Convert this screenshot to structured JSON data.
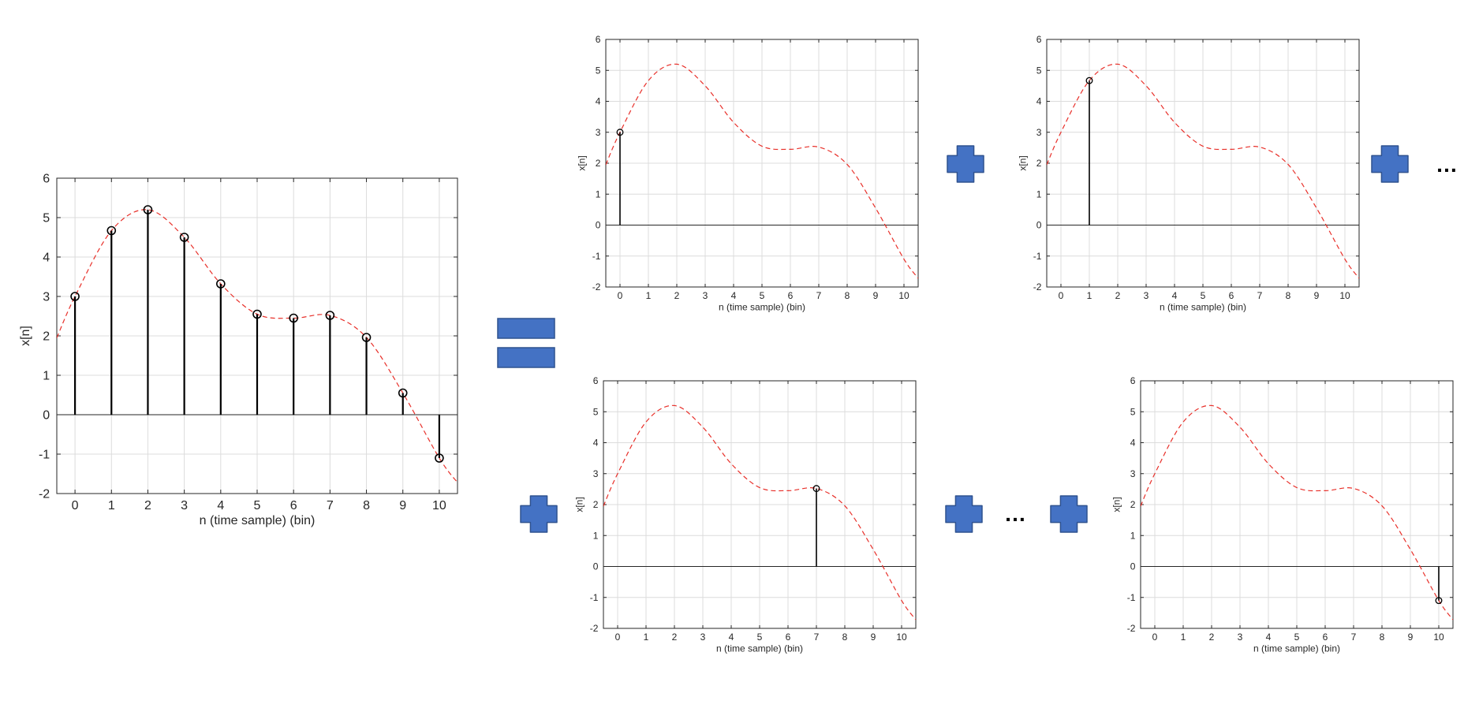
{
  "colors": {
    "stem": "#000000",
    "curve": "#e8302a",
    "grid": "#dcdcdc",
    "axis": "#262626",
    "operator_fill": "#4472c4",
    "operator_stroke": "#2f528f"
  },
  "operators": {
    "equals": "=",
    "plus": "+",
    "ellipsis": "…"
  },
  "chart_data": [
    {
      "id": "main",
      "type": "stem",
      "xlabel": "n (time sample) (bin)",
      "ylabel": "x[n]",
      "xlim": [
        -0.5,
        10.5
      ],
      "ylim": [
        -2,
        6
      ],
      "xticks": [
        0,
        1,
        2,
        3,
        4,
        5,
        6,
        7,
        8,
        9,
        10
      ],
      "yticks": [
        -2,
        -1,
        0,
        1,
        2,
        3,
        4,
        5,
        6
      ],
      "grid": true,
      "stems": {
        "x": [
          0,
          1,
          2,
          3,
          4,
          5,
          6,
          7,
          8,
          9,
          10
        ],
        "y": [
          3.0,
          4.67,
          5.2,
          4.5,
          3.32,
          2.55,
          2.45,
          2.52,
          1.96,
          0.55,
          -1.1
        ]
      },
      "curve": {
        "style": "dashed",
        "x": [
          -0.5,
          0,
          1,
          2,
          3,
          4,
          5,
          6,
          7,
          8,
          9,
          10,
          10.5
        ],
        "y": [
          1.95,
          3.0,
          4.67,
          5.2,
          4.5,
          3.32,
          2.55,
          2.45,
          2.52,
          1.96,
          0.55,
          -1.1,
          -1.72
        ]
      }
    },
    {
      "id": "term-n0",
      "type": "stem",
      "xlabel": "n (time sample) (bin)",
      "ylabel": "x[n]",
      "xlim": [
        -0.5,
        10.5
      ],
      "ylim": [
        -2,
        6
      ],
      "xticks": [
        0,
        1,
        2,
        3,
        4,
        5,
        6,
        7,
        8,
        9,
        10
      ],
      "yticks": [
        -2,
        -1,
        0,
        1,
        2,
        3,
        4,
        5,
        6
      ],
      "grid": true,
      "stems": {
        "x": [
          0
        ],
        "y": [
          3.0
        ]
      },
      "curve": {
        "style": "dashed",
        "x": [
          -0.5,
          0,
          1,
          2,
          3,
          4,
          5,
          6,
          7,
          8,
          9,
          10,
          10.5
        ],
        "y": [
          1.95,
          3.0,
          4.67,
          5.2,
          4.5,
          3.32,
          2.55,
          2.45,
          2.52,
          1.96,
          0.55,
          -1.1,
          -1.72
        ]
      }
    },
    {
      "id": "term-n1",
      "type": "stem",
      "xlabel": "n (time sample) (bin)",
      "ylabel": "x[n]",
      "xlim": [
        -0.5,
        10.5
      ],
      "ylim": [
        -2,
        6
      ],
      "xticks": [
        0,
        1,
        2,
        3,
        4,
        5,
        6,
        7,
        8,
        9,
        10
      ],
      "yticks": [
        -2,
        -1,
        0,
        1,
        2,
        3,
        4,
        5,
        6
      ],
      "grid": true,
      "stems": {
        "x": [
          1
        ],
        "y": [
          4.67
        ]
      },
      "curve": {
        "style": "dashed",
        "x": [
          -0.5,
          0,
          1,
          2,
          3,
          4,
          5,
          6,
          7,
          8,
          9,
          10,
          10.5
        ],
        "y": [
          1.95,
          3.0,
          4.67,
          5.2,
          4.5,
          3.32,
          2.55,
          2.45,
          2.52,
          1.96,
          0.55,
          -1.1,
          -1.72
        ]
      }
    },
    {
      "id": "term-n7",
      "type": "stem",
      "xlabel": "n (time sample) (bin)",
      "ylabel": "x[n]",
      "xlim": [
        -0.5,
        10.5
      ],
      "ylim": [
        -2,
        6
      ],
      "xticks": [
        0,
        1,
        2,
        3,
        4,
        5,
        6,
        7,
        8,
        9,
        10
      ],
      "yticks": [
        -2,
        -1,
        0,
        1,
        2,
        3,
        4,
        5,
        6
      ],
      "grid": true,
      "stems": {
        "x": [
          7
        ],
        "y": [
          2.52
        ]
      },
      "curve": {
        "style": "dashed",
        "x": [
          -0.5,
          0,
          1,
          2,
          3,
          4,
          5,
          6,
          7,
          8,
          9,
          10,
          10.5
        ],
        "y": [
          1.95,
          3.0,
          4.67,
          5.2,
          4.5,
          3.32,
          2.55,
          2.45,
          2.52,
          1.96,
          0.55,
          -1.1,
          -1.72
        ]
      }
    },
    {
      "id": "term-n10",
      "type": "stem",
      "xlabel": "n (time sample) (bin)",
      "ylabel": "x[n]",
      "xlim": [
        -0.5,
        10.5
      ],
      "ylim": [
        -2,
        6
      ],
      "xticks": [
        0,
        1,
        2,
        3,
        4,
        5,
        6,
        7,
        8,
        9,
        10
      ],
      "yticks": [
        -2,
        -1,
        0,
        1,
        2,
        3,
        4,
        5,
        6
      ],
      "grid": true,
      "stems": {
        "x": [
          10
        ],
        "y": [
          -1.1
        ]
      },
      "curve": {
        "style": "dashed",
        "x": [
          -0.5,
          0,
          1,
          2,
          3,
          4,
          5,
          6,
          7,
          8,
          9,
          10,
          10.5
        ],
        "y": [
          1.95,
          3.0,
          4.67,
          5.2,
          4.5,
          3.32,
          2.55,
          2.45,
          2.52,
          1.96,
          0.55,
          -1.1,
          -1.72
        ]
      }
    }
  ]
}
